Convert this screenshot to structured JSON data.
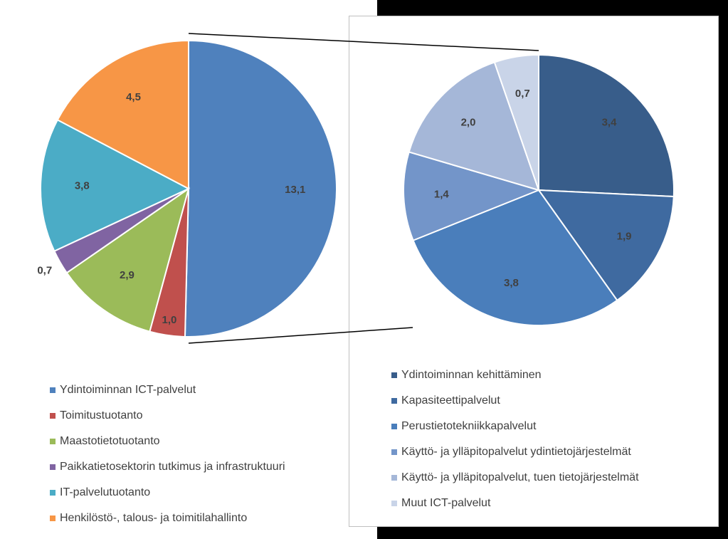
{
  "chart_data": [
    {
      "type": "pie",
      "categories": [
        "Ydintoiminnan ICT-palvelut",
        "Toimitustuotanto",
        "Maastotietotuotanto",
        "Paikkatietosektorin tutkimus ja infrastruktuuri",
        "IT-palvelutuotanto",
        "Henkilöstö-, talous- ja toimitilahallinto"
      ],
      "values": [
        13.1,
        1.0,
        2.9,
        0.7,
        3.8,
        4.5
      ],
      "value_labels": [
        "13,1",
        "1,0",
        "2,9",
        "0,7",
        "3,8",
        "4,5"
      ],
      "colors": [
        "#4f81bd",
        "#c0504d",
        "#9bbb59",
        "#8064a2",
        "#4bacc6",
        "#f79646"
      ]
    },
    {
      "type": "pie",
      "categories": [
        "Ydintoiminnan kehittäminen",
        "Kapasiteettipalvelut",
        "Perustietotekniikkapalvelut",
        "Käyttö- ja ylläpitopalvelut ydintietojärjestelmät",
        "Käyttö- ja ylläpitopalvelut, tuen tietojärjestelmät",
        "Muut ICT-palvelut"
      ],
      "values": [
        3.4,
        1.9,
        3.8,
        1.4,
        2.0,
        0.7
      ],
      "value_labels": [
        "3,4",
        "1,9",
        "3,8",
        "1,4",
        "2,0",
        "0,7"
      ],
      "colors": [
        "#385d8a",
        "#3f6aa0",
        "#4a7ebb",
        "#7395c9",
        "#a5b7d8",
        "#c9d4e8"
      ]
    }
  ]
}
